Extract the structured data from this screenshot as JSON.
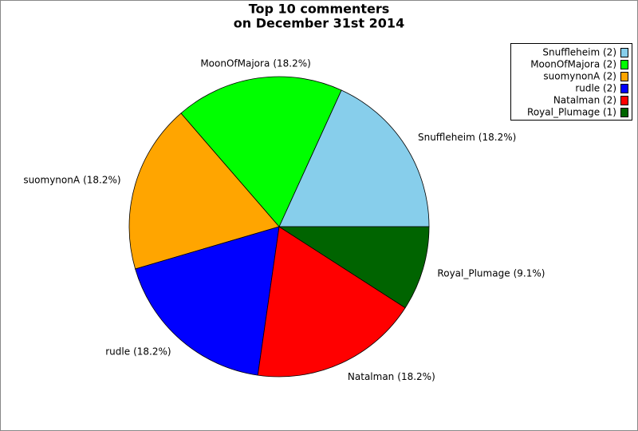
{
  "chart_data": {
    "type": "pie",
    "title": [
      "Top 10 commenters",
      "on December 31st 2014"
    ],
    "categories": [
      "Snuffleheim",
      "MoonOfMajora",
      "suomynonA",
      "rudle",
      "Natalman",
      "Royal_Plumage"
    ],
    "values": [
      18.2,
      18.2,
      18.2,
      18.2,
      18.2,
      9.1
    ],
    "value_labels": [
      "(18.2%)",
      "(18.2%)",
      "(18.2%)",
      "(18.2%)",
      "(18.2%)",
      "(9.1%)"
    ],
    "colors": [
      "#87ceeb",
      "#00ff00",
      "#ffa500",
      "#0000ff",
      "#ff0000",
      "#006400"
    ],
    "legend": [
      "Snuffleheim (2)",
      "MoonOfMajora (2)",
      "suomynonA (2)",
      "rudle (2)",
      "Natalman (2)",
      "Royal_Plumage (1)"
    ],
    "legend_position": "upper right"
  }
}
